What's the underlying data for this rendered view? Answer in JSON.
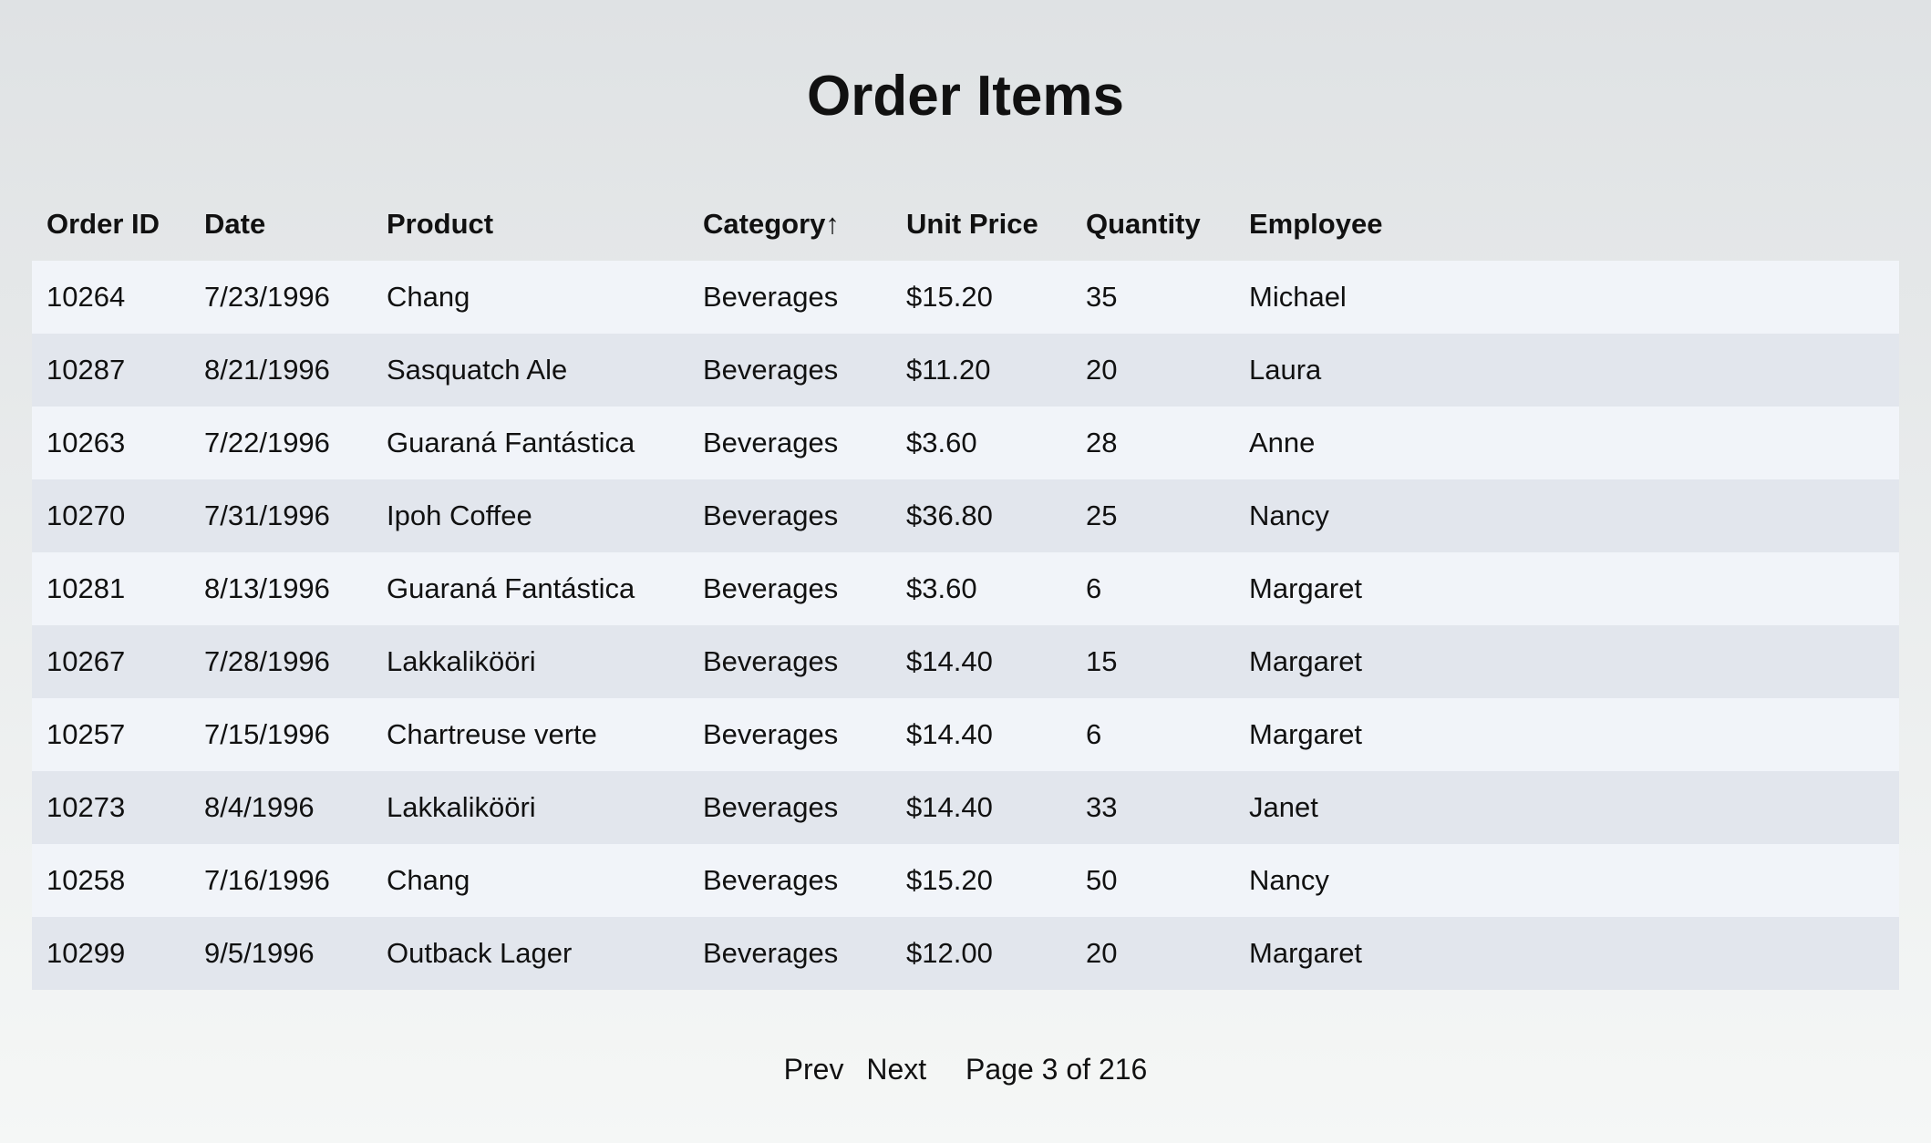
{
  "title": "Order Items",
  "table": {
    "columns": [
      "Order ID",
      "Date",
      "Product",
      "Category↑",
      "Unit Price",
      "Quantity",
      "Employee"
    ],
    "sort": {
      "column": "Category",
      "direction": "ascending",
      "icon": "arrow-up-icon"
    },
    "rows": [
      [
        "10264",
        "7/23/1996",
        "Chang",
        "Beverages",
        "$15.20",
        "35",
        "Michael"
      ],
      [
        "10287",
        "8/21/1996",
        "Sasquatch Ale",
        "Beverages",
        "$11.20",
        "20",
        "Laura"
      ],
      [
        "10263",
        "7/22/1996",
        "Guaraná Fantástica",
        "Beverages",
        "$3.60",
        "28",
        "Anne"
      ],
      [
        "10270",
        "7/31/1996",
        "Ipoh Coffee",
        "Beverages",
        "$36.80",
        "25",
        "Nancy"
      ],
      [
        "10281",
        "8/13/1996",
        "Guaraná Fantástica",
        "Beverages",
        "$3.60",
        "6",
        "Margaret"
      ],
      [
        "10267",
        "7/28/1996",
        "Lakkalikööri",
        "Beverages",
        "$14.40",
        "15",
        "Margaret"
      ],
      [
        "10257",
        "7/15/1996",
        "Chartreuse verte",
        "Beverages",
        "$14.40",
        "6",
        "Margaret"
      ],
      [
        "10273",
        "8/4/1996",
        "Lakkalikööri",
        "Beverages",
        "$14.40",
        "33",
        "Janet"
      ],
      [
        "10258",
        "7/16/1996",
        "Chang",
        "Beverages",
        "$15.20",
        "50",
        "Nancy"
      ],
      [
        "10299",
        "9/5/1996",
        "Outback Lager",
        "Beverages",
        "$12.00",
        "20",
        "Margaret"
      ]
    ]
  },
  "pagination": {
    "prev_label": "Prev",
    "next_label": "Next",
    "info": "Page 3 of 216"
  }
}
